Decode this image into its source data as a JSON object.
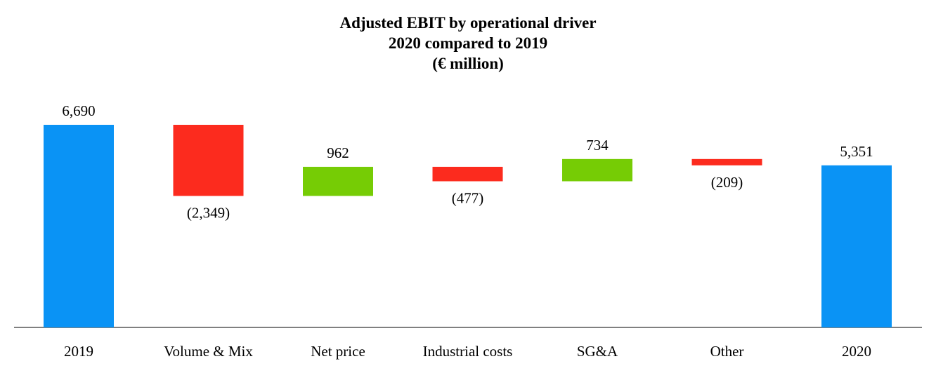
{
  "chart_data": {
    "type": "waterfall",
    "title": [
      "Adjusted EBIT by operational driver",
      "2020 compared to 2019",
      "(€ million)"
    ],
    "categories": [
      "2019",
      "Volume & Mix",
      "Net price",
      "Industrial costs",
      "SG&A",
      "Other",
      "2020"
    ],
    "values": [
      6690,
      -2349,
      962,
      -477,
      734,
      -209,
      5351
    ],
    "kinds": [
      "total",
      "delta",
      "delta",
      "delta",
      "delta",
      "delta",
      "total"
    ],
    "data_labels": [
      "6,690",
      "(2,349)",
      "962",
      "(477)",
      "734",
      "(209)",
      "5,351"
    ],
    "colors": {
      "total": "#0a93f5",
      "increase": "#76cc05",
      "decrease": "#fc2b1e"
    },
    "ylim": [
      0,
      7000
    ],
    "xlabel": "",
    "ylabel": ""
  }
}
